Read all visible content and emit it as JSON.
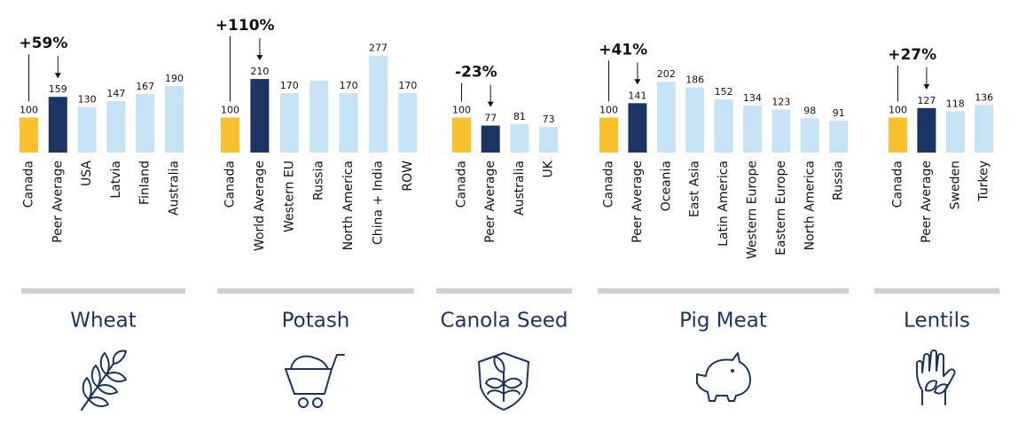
{
  "chart_data": [
    {
      "type": "bar",
      "title": "Wheat",
      "annotation": "+59%",
      "categories": [
        "Canada",
        "Peer Average",
        "USA",
        "Latvia",
        "Finland",
        "Australia"
      ],
      "values": [
        100,
        159,
        130,
        147,
        167,
        190
      ],
      "colors": [
        "#fbc12d",
        "#1c3461",
        "#c6e3f6",
        "#c6e3f6",
        "#c6e3f6",
        "#c6e3f6"
      ]
    },
    {
      "type": "bar",
      "title": "Potash",
      "annotation": "+110%",
      "categories": [
        "Canada",
        "World Average",
        "Western EU",
        "Russia",
        "North America",
        "China + India",
        "ROW"
      ],
      "values": [
        100,
        210,
        170,
        205,
        170,
        277,
        170
      ],
      "value_labels": [
        "100",
        "210",
        "170",
        null,
        "170",
        "277",
        "170"
      ],
      "colors": [
        "#fbc12d",
        "#1c3461",
        "#c6e3f6",
        "#c6e3f6",
        "#c6e3f6",
        "#c6e3f6",
        "#c6e3f6"
      ]
    },
    {
      "type": "bar",
      "title": "Canola Seed",
      "annotation": "-23%",
      "categories": [
        "Canada",
        "Peer Average",
        "Australia",
        "UK"
      ],
      "values": [
        100,
        77,
        81,
        73
      ],
      "colors": [
        "#fbc12d",
        "#1c3461",
        "#c6e3f6",
        "#c6e3f6"
      ]
    },
    {
      "type": "bar",
      "title": "Pig Meat",
      "annotation": "+41%",
      "categories": [
        "Canada",
        "Peer Average",
        "Oceania",
        "East Asia",
        "Latin America",
        "Western Europe",
        "Eastern Europe",
        "North America",
        "Russia"
      ],
      "values": [
        100,
        141,
        202,
        186,
        152,
        134,
        123,
        98,
        91
      ],
      "colors": [
        "#fbc12d",
        "#1c3461",
        "#c6e3f6",
        "#c6e3f6",
        "#c6e3f6",
        "#c6e3f6",
        "#c6e3f6",
        "#c6e3f6",
        "#c6e3f6"
      ]
    },
    {
      "type": "bar",
      "title": "Lentils",
      "annotation": "+27%",
      "categories": [
        "Canada",
        "Peer Average",
        "Sweden",
        "Turkey"
      ],
      "values": [
        100,
        127,
        118,
        136
      ],
      "colors": [
        "#fbc12d",
        "#1c3461",
        "#c6e3f6",
        "#c6e3f6"
      ]
    }
  ]
}
